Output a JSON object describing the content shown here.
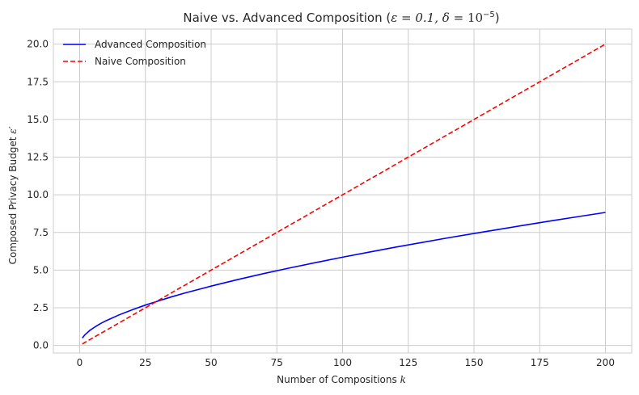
{
  "chart_data": {
    "type": "line",
    "title": {
      "text": "Naive vs. Advanced Composition (",
      "epsilon_part": "ε = 0.1, δ = ",
      "delta_base": "10",
      "delta_exp": "−5",
      "close": ")"
    },
    "xlabel": {
      "text": "Number of Compositions ",
      "math": "k"
    },
    "ylabel": {
      "text": "Composed Privacy Budget ",
      "math": "ε′"
    },
    "xlim": [
      -10,
      210
    ],
    "ylim": [
      -0.5,
      21
    ],
    "xticks": [
      0,
      25,
      50,
      75,
      100,
      125,
      150,
      175,
      200
    ],
    "xtick_labels": [
      "0",
      "25",
      "50",
      "75",
      "100",
      "125",
      "150",
      "175",
      "200"
    ],
    "yticks": [
      0,
      2.5,
      5,
      7.5,
      10,
      12.5,
      15,
      17.5,
      20
    ],
    "ytick_labels": [
      "0.0",
      "2.5",
      "5.0",
      "7.5",
      "10.0",
      "12.5",
      "15.0",
      "17.5",
      "20.0"
    ],
    "grid": true,
    "legend_position": "upper-left",
    "series": [
      {
        "name": "Advanced Composition",
        "color": "#0000ff",
        "style": "solid",
        "x": [
          1,
          2,
          4,
          6,
          8,
          10,
          15,
          20,
          25,
          30,
          35,
          40,
          50,
          60,
          70,
          80,
          90,
          100,
          110,
          120,
          130,
          140,
          150,
          160,
          170,
          180,
          190,
          200
        ],
        "y": [
          0.49,
          0.71,
          1.02,
          1.25,
          1.46,
          1.64,
          2.03,
          2.37,
          2.68,
          2.96,
          3.23,
          3.48,
          3.94,
          4.37,
          4.77,
          5.15,
          5.51,
          5.86,
          6.19,
          6.52,
          6.83,
          7.14,
          7.43,
          7.72,
          8.01,
          8.29,
          8.56,
          8.83
        ]
      },
      {
        "name": "Naive Composition",
        "color": "#ff0000",
        "style": "dashed",
        "x": [
          1,
          200
        ],
        "y": [
          0.1,
          20.0
        ]
      }
    ]
  }
}
